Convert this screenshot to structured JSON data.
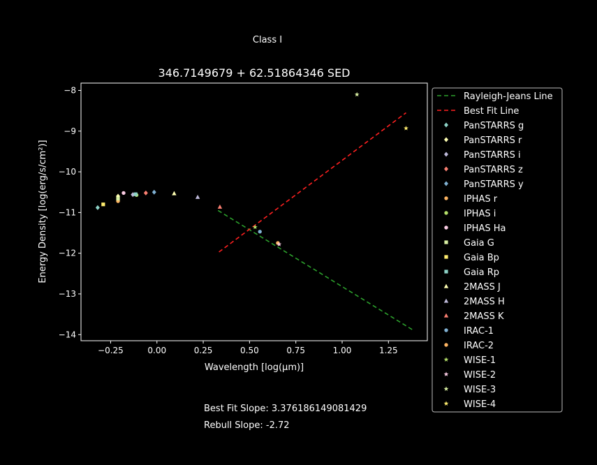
{
  "figure": {
    "suptitle": "Class I",
    "footer": {
      "best_fit_slope": "Best Fit Slope: 3.376186149081429",
      "rebull_slope": "Rebull Slope: -2.72"
    }
  },
  "chart_data": {
    "type": "scatter",
    "title": "346.7149679 + 62.51864346 SED",
    "xlabel": "Wavelength [log(μm)]",
    "ylabel": "Energy Density [log(erg/s/cm²)]",
    "xlim": [
      -0.41,
      1.46
    ],
    "ylim": [
      -14.15,
      -7.82
    ],
    "xticks": [
      -0.25,
      0.0,
      0.25,
      0.5,
      0.75,
      1.0,
      1.25
    ],
    "xtick_labels": [
      "−0.25",
      "0.00",
      "0.25",
      "0.50",
      "0.75",
      "1.00",
      "1.25"
    ],
    "yticks": [
      -8,
      -9,
      -10,
      -11,
      -12,
      -13,
      -14
    ],
    "ytick_labels": [
      "−8",
      "−9",
      "−10",
      "−11",
      "−12",
      "−13",
      "−14"
    ],
    "grid": false,
    "legend_position": "outside-right",
    "lines": [
      {
        "name": "Rayleigh-Jeans Line",
        "color": "#2ca02c",
        "dash": "6,4",
        "x": [
          0.33,
          1.38
        ],
        "y": [
          -10.95,
          -13.88
        ]
      },
      {
        "name": "Best Fit Line",
        "color": "#ff2020",
        "dash": "6,4",
        "x": [
          0.335,
          1.345
        ],
        "y": [
          -11.97,
          -8.55
        ]
      }
    ],
    "series": [
      {
        "name": "PanSTARRS g",
        "marker": "diamond",
        "color": "#8dd3c7",
        "x": [
          -0.32
        ],
        "y": [
          -10.88
        ]
      },
      {
        "name": "PanSTARRS r",
        "marker": "diamond",
        "color": "#ffffb3",
        "x": [
          -0.21
        ],
        "y": [
          -10.6
        ]
      },
      {
        "name": "PanSTARRS i",
        "marker": "diamond",
        "color": "#bebada",
        "x": [
          -0.13
        ],
        "y": [
          -10.56
        ]
      },
      {
        "name": "PanSTARRS z",
        "marker": "diamond",
        "color": "#fb8072",
        "x": [
          -0.06
        ],
        "y": [
          -10.52
        ]
      },
      {
        "name": "PanSTARRS y",
        "marker": "diamond",
        "color": "#80b1d3",
        "x": [
          -0.015
        ],
        "y": [
          -10.5
        ]
      },
      {
        "name": "IPHAS r",
        "marker": "circle",
        "color": "#fdb462",
        "x": [
          -0.21
        ],
        "y": [
          -10.72
        ]
      },
      {
        "name": "IPHAS i",
        "marker": "circle",
        "color": "#b3de69",
        "x": [
          -0.11
        ],
        "y": [
          -10.57
        ]
      },
      {
        "name": "IPHAS Ha",
        "marker": "circle",
        "color": "#fccde5",
        "x": [
          -0.18
        ],
        "y": [
          -10.52
        ]
      },
      {
        "name": "Gaia G",
        "marker": "square",
        "color": "#d9f0a3",
        "x": [
          -0.21
        ],
        "y": [
          -10.66
        ]
      },
      {
        "name": "Gaia Bp",
        "marker": "square",
        "color": "#ffed6f",
        "x": [
          -0.29
        ],
        "y": [
          -10.8
        ]
      },
      {
        "name": "Gaia Rp",
        "marker": "square",
        "color": "#8dd3c7",
        "x": [
          -0.115
        ],
        "y": [
          -10.55
        ]
      },
      {
        "name": "2MASS J",
        "marker": "triangle",
        "color": "#ffffb3",
        "x": [
          0.093
        ],
        "y": [
          -10.53
        ]
      },
      {
        "name": "2MASS H",
        "marker": "triangle",
        "color": "#bebada",
        "x": [
          0.22
        ],
        "y": [
          -10.62
        ]
      },
      {
        "name": "2MASS K",
        "marker": "triangle",
        "color": "#fb8072",
        "x": [
          0.34
        ],
        "y": [
          -10.86
        ]
      },
      {
        "name": "IRAC-1",
        "marker": "circle",
        "color": "#80b1d3",
        "x": [
          0.556
        ],
        "y": [
          -11.47
        ]
      },
      {
        "name": "IRAC-2",
        "marker": "circle",
        "color": "#fdb462",
        "x": [
          0.653
        ],
        "y": [
          -11.75
        ]
      },
      {
        "name": "WISE-1",
        "marker": "star",
        "color": "#b3de69",
        "x": [
          0.53
        ],
        "y": [
          -11.36
        ]
      },
      {
        "name": "WISE-2",
        "marker": "star",
        "color": "#fccde5",
        "x": [
          0.66
        ],
        "y": [
          -11.78
        ]
      },
      {
        "name": "WISE-3",
        "marker": "star",
        "color": "#d9f0a3",
        "x": [
          1.08
        ],
        "y": [
          -8.1
        ]
      },
      {
        "name": "WISE-4",
        "marker": "star",
        "color": "#ffed6f",
        "x": [
          1.345
        ],
        "y": [
          -8.93
        ]
      }
    ]
  }
}
